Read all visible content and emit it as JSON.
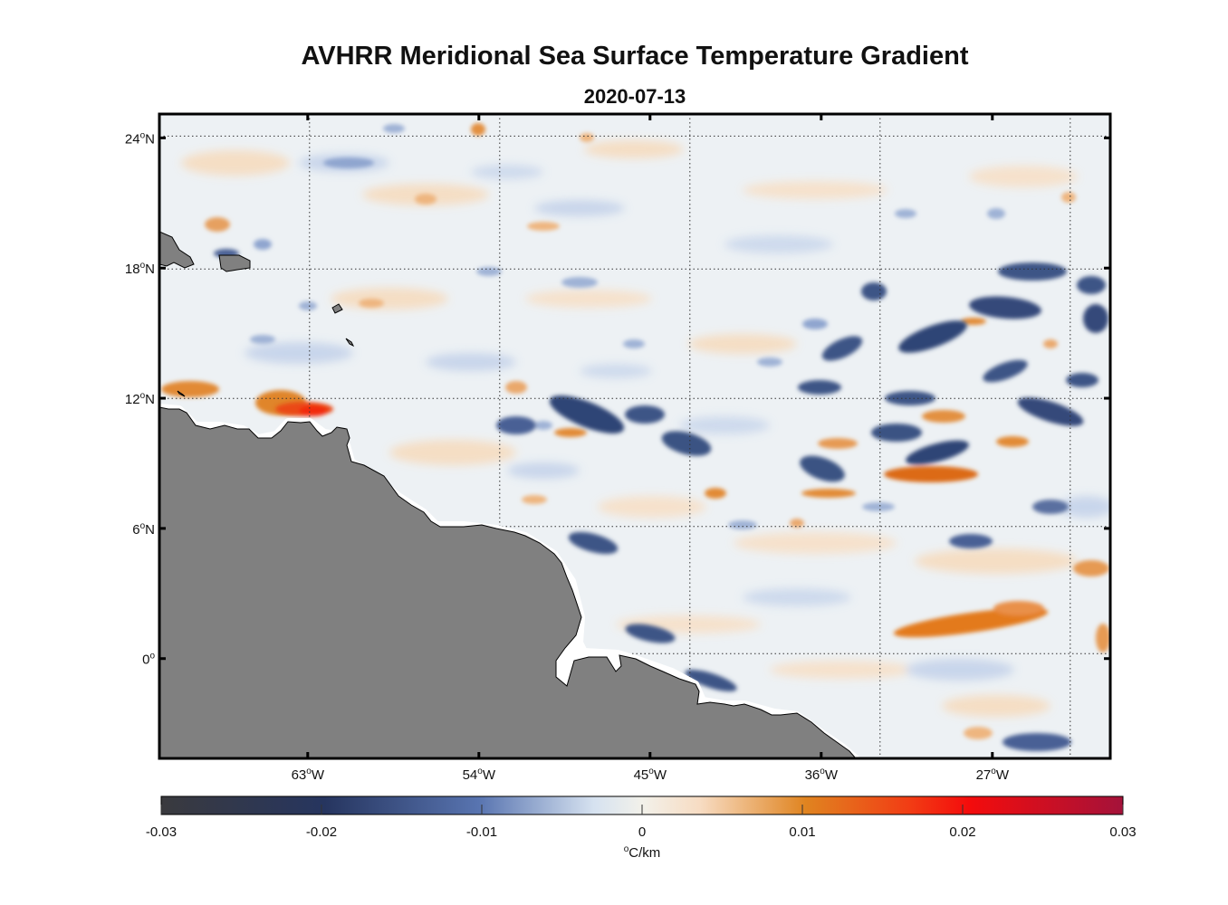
{
  "title": "AVHRR Meridional Sea Surface Temperature Gradient",
  "subtitle": "2020-07-13",
  "map": {
    "lon_range": [
      -70.8,
      -20.8
    ],
    "lat_range": [
      -4.6,
      25.1
    ],
    "lon_ticks": [
      {
        "value": -63,
        "deg": "63",
        "hemi": "W"
      },
      {
        "value": -54,
        "deg": "54",
        "hemi": "W"
      },
      {
        "value": -45,
        "deg": "45",
        "hemi": "W"
      },
      {
        "value": -36,
        "deg": "36",
        "hemi": "W"
      },
      {
        "value": -27,
        "deg": "27",
        "hemi": "W"
      }
    ],
    "lat_ticks": [
      {
        "value": 24,
        "deg": "24",
        "hemi": "N"
      },
      {
        "value": 18,
        "deg": "18",
        "hemi": "N"
      },
      {
        "value": 12,
        "deg": "12",
        "hemi": "N"
      },
      {
        "value": 6,
        "deg": "6",
        "hemi": "N"
      },
      {
        "value": 0,
        "deg": "0",
        "hemi": ""
      }
    ],
    "degree_symbol": "o",
    "land_color": "#808080",
    "gridlines": "dotted"
  },
  "colorbar": {
    "min": -0.03,
    "max": 0.03,
    "ticks": [
      "-0.03",
      "-0.02",
      "-0.01",
      "0",
      "0.01",
      "0.02",
      "0.03"
    ],
    "label_deg": "o",
    "label_unit": "C/km",
    "colormap": "balance (blue-white-red)"
  }
}
